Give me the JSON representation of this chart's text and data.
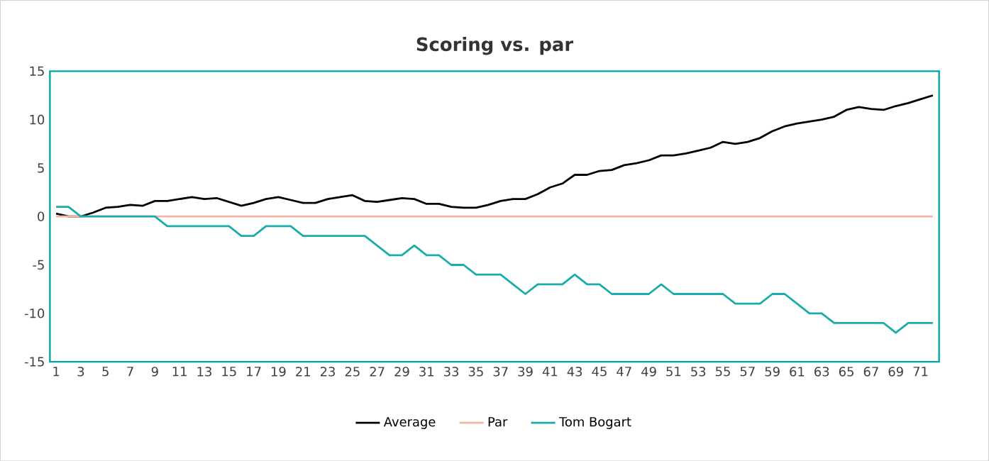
{
  "chart_data": {
    "type": "line",
    "title": "Scoring vs. par",
    "categories": [
      "1",
      null,
      "3",
      null,
      "5",
      null,
      "7",
      null,
      "9",
      null,
      "11",
      null,
      "13",
      null,
      "15",
      null,
      "17",
      null,
      "19",
      null,
      "21",
      null,
      "23",
      null,
      "25",
      null,
      "27",
      null,
      "29",
      null,
      "31",
      null,
      "33",
      null,
      "35",
      null,
      "37",
      null,
      "39",
      null,
      "41",
      null,
      "43",
      null,
      "45",
      null,
      "47",
      null,
      "49",
      null,
      "51",
      null,
      "53",
      null,
      "55",
      null,
      "57",
      null,
      "59",
      null,
      "61",
      null,
      "63",
      null,
      "65",
      null,
      "67",
      null,
      "69",
      null,
      "71",
      null
    ],
    "series": [
      {
        "name": "Average",
        "color": "#000000",
        "values": [
          0.3,
          0,
          0,
          0.4,
          0.9,
          1.0,
          1.2,
          1.1,
          1.6,
          1.6,
          1.8,
          2.0,
          1.8,
          1.9,
          1.5,
          1.1,
          1.4,
          1.8,
          2.0,
          1.7,
          1.4,
          1.4,
          1.8,
          2.0,
          2.2,
          1.6,
          1.5,
          1.7,
          1.9,
          1.8,
          1.3,
          1.3,
          1.0,
          0.9,
          0.9,
          1.2,
          1.6,
          1.8,
          1.8,
          2.3,
          3.0,
          3.4,
          4.3,
          4.3,
          4.7,
          4.8,
          5.3,
          5.5,
          5.8,
          6.3,
          6.3,
          6.5,
          6.8,
          7.1,
          7.7,
          7.5,
          7.7,
          8.1,
          8.8,
          9.3,
          9.6,
          9.8,
          10.0,
          10.3,
          11.0,
          11.3,
          11.1,
          11.0,
          11.4,
          11.7,
          12.1,
          12.5
        ]
      },
      {
        "name": "Par",
        "color": "#f4b4a4",
        "values": [
          0,
          0,
          0,
          0,
          0,
          0,
          0,
          0,
          0,
          0,
          0,
          0,
          0,
          0,
          0,
          0,
          0,
          0,
          0,
          0,
          0,
          0,
          0,
          0,
          0,
          0,
          0,
          0,
          0,
          0,
          0,
          0,
          0,
          0,
          0,
          0,
          0,
          0,
          0,
          0,
          0,
          0,
          0,
          0,
          0,
          0,
          0,
          0,
          0,
          0,
          0,
          0,
          0,
          0,
          0,
          0,
          0,
          0,
          0,
          0,
          0,
          0,
          0,
          0,
          0,
          0,
          0,
          0,
          0,
          0,
          0,
          0
        ]
      },
      {
        "name": "Tom Bogart",
        "color": "#1aabab",
        "values": [
          1,
          1,
          0,
          0,
          0,
          0,
          0,
          0,
          0,
          -1,
          -1,
          -1,
          -1,
          -1,
          -1,
          -2,
          -2,
          -1,
          -1,
          -1,
          -2,
          -2,
          -2,
          -2,
          -2,
          -2,
          -3,
          -4,
          -4,
          -3,
          -4,
          -4,
          -5,
          -5,
          -6,
          -6,
          -6,
          -7,
          -8,
          -7,
          -7,
          -7,
          -6,
          -7,
          -7,
          -8,
          -8,
          -8,
          -8,
          -7,
          -8,
          -8,
          -8,
          -8,
          -8,
          -9,
          -9,
          -9,
          -8,
          -8,
          -9,
          -10,
          -10,
          -11,
          -11,
          -11,
          -11,
          -11,
          -12,
          -11,
          -11,
          -11
        ]
      }
    ],
    "ylim": [
      -15,
      15
    ],
    "yticks": [
      -15,
      -10,
      -5,
      0,
      5,
      10,
      15
    ],
    "grid": false,
    "legend": "bottom",
    "marker": "none",
    "line_style": "solid"
  }
}
